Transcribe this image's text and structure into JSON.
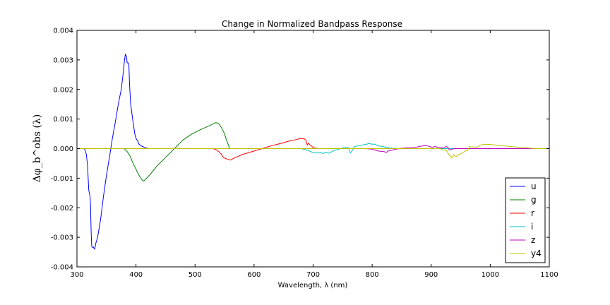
{
  "chart_data": {
    "type": "line",
    "title": "Change in Normalized Bandpass Response",
    "xlabel": "Wavelength, λ (nm)",
    "ylabel": "Δφ_b^obs (λ)",
    "xlim": [
      300,
      1100
    ],
    "ylim": [
      -0.004,
      0.004
    ],
    "x_ticks": [
      "300",
      "400",
      "500",
      "600",
      "700",
      "800",
      "900",
      "1000",
      "1100"
    ],
    "y_ticks": [
      "0.004",
      "0.003",
      "0.002",
      "0.001",
      "0.000",
      "-0.001",
      "-0.002",
      "-0.003",
      "-0.004"
    ],
    "legend_position": "lower right",
    "grid": false,
    "series": [
      {
        "name": "u",
        "color": "#0000ff",
        "points": [
          [
            300,
            0
          ],
          [
            310,
            0
          ],
          [
            313,
            -1e-05
          ],
          [
            316,
            -0.0002
          ],
          [
            318,
            -0.0006
          ],
          [
            320,
            -0.0014
          ],
          [
            322,
            -0.0016
          ],
          [
            323,
            -0.0019
          ],
          [
            324,
            -0.0028
          ],
          [
            325,
            -0.0033
          ],
          [
            327,
            -0.00335
          ],
          [
            328,
            -0.00333
          ],
          [
            329,
            -0.00338
          ],
          [
            330,
            -0.0034
          ],
          [
            332,
            -0.0032
          ],
          [
            335,
            -0.003
          ],
          [
            340,
            -0.0024
          ],
          [
            345,
            -0.0016
          ],
          [
            350,
            -0.0009
          ],
          [
            355,
            -0.0003
          ],
          [
            360,
            0.00035
          ],
          [
            365,
            0.0009
          ],
          [
            370,
            0.0015
          ],
          [
            375,
            0.002
          ],
          [
            378,
            0.0025
          ],
          [
            380,
            0.0029
          ],
          [
            382,
            0.0032
          ],
          [
            384,
            0.0031
          ],
          [
            385,
            0.0029
          ],
          [
            387,
            0.0029
          ],
          [
            388,
            0.0028
          ],
          [
            389,
            0.0022
          ],
          [
            391,
            0.0015
          ],
          [
            393,
            0.0012
          ],
          [
            395,
            0.0009
          ],
          [
            398,
            0.0005
          ],
          [
            400,
            0.00035
          ],
          [
            403,
            0.00025
          ],
          [
            405,
            0.00015
          ],
          [
            410,
            8e-05
          ],
          [
            415,
            4e-05
          ],
          [
            420,
            0
          ],
          [
            450,
            0
          ],
          [
            500,
            0
          ],
          [
            600,
            0
          ],
          [
            700,
            0
          ],
          [
            800,
            0
          ],
          [
            900,
            0
          ],
          [
            1000,
            0
          ],
          [
            1100,
            0
          ]
        ]
      },
      {
        "name": "g",
        "color": "#008000",
        "points": [
          [
            300,
            0
          ],
          [
            380,
            0
          ],
          [
            385,
            -0.0001
          ],
          [
            390,
            -0.00025
          ],
          [
            395,
            -0.0005
          ],
          [
            400,
            -0.0007
          ],
          [
            405,
            -0.0009
          ],
          [
            410,
            -0.00105
          ],
          [
            413,
            -0.0011
          ],
          [
            418,
            -0.001
          ],
          [
            425,
            -0.00085
          ],
          [
            435,
            -0.0006
          ],
          [
            450,
            -0.0003
          ],
          [
            465,
            0
          ],
          [
            480,
            0.0003
          ],
          [
            495,
            0.0005
          ],
          [
            510,
            0.00065
          ],
          [
            525,
            0.00078
          ],
          [
            535,
            0.00088
          ],
          [
            540,
            0.00085
          ],
          [
            545,
            0.0007
          ],
          [
            550,
            0.0005
          ],
          [
            553,
            0.0003
          ],
          [
            556,
            0.00015
          ],
          [
            558,
            3e-05
          ],
          [
            560,
            0
          ],
          [
            600,
            0
          ],
          [
            700,
            0
          ],
          [
            800,
            0
          ],
          [
            900,
            0
          ],
          [
            1000,
            0
          ],
          [
            1100,
            0
          ]
        ]
      },
      {
        "name": "r",
        "color": "#ff0000",
        "points": [
          [
            300,
            0
          ],
          [
            530,
            0
          ],
          [
            535,
            -3e-05
          ],
          [
            540,
            -0.0001
          ],
          [
            545,
            -0.0002
          ],
          [
            548,
            -0.0003
          ],
          [
            552,
            -0.00034
          ],
          [
            556,
            -0.00036
          ],
          [
            560,
            -0.00039
          ],
          [
            565,
            -0.00033
          ],
          [
            572,
            -0.00027
          ],
          [
            580,
            -0.0002
          ],
          [
            590,
            -0.00014
          ],
          [
            600,
            -8e-05
          ],
          [
            610,
            -2e-05
          ],
          [
            620,
            4e-05
          ],
          [
            630,
            0.0001
          ],
          [
            640,
            0.00015
          ],
          [
            650,
            0.0002
          ],
          [
            660,
            0.00026
          ],
          [
            670,
            0.0003
          ],
          [
            678,
            0.00034
          ],
          [
            685,
            0.00033
          ],
          [
            688,
            0.00028
          ],
          [
            690,
            0.00012
          ],
          [
            692,
            0.00018
          ],
          [
            694,
            0.00014
          ],
          [
            697,
            0.0001
          ],
          [
            700,
            3e-05
          ],
          [
            705,
            1e-05
          ],
          [
            710,
            0
          ],
          [
            800,
            0
          ],
          [
            900,
            0
          ],
          [
            1000,
            0
          ],
          [
            1100,
            0
          ]
        ]
      },
      {
        "name": "i",
        "color": "#00bfbf",
        "points": [
          [
            300,
            0
          ],
          [
            680,
            0
          ],
          [
            690,
            -5e-05
          ],
          [
            698,
            -0.00012
          ],
          [
            705,
            -0.00015
          ],
          [
            712,
            -0.00014
          ],
          [
            718,
            -0.00016
          ],
          [
            722,
            -0.00012
          ],
          [
            726,
            -0.00016
          ],
          [
            730,
            -0.00012
          ],
          [
            736,
            -6e-05
          ],
          [
            740,
            -4e-05
          ],
          [
            745,
            -1e-05
          ],
          [
            752,
            3e-05
          ],
          [
            758,
            5e-05
          ],
          [
            761,
            0
          ],
          [
            763,
            -0.00015
          ],
          [
            765,
            -9e-05
          ],
          [
            767,
            -5e-05
          ],
          [
            770,
            7e-05
          ],
          [
            778,
            0.0001
          ],
          [
            788,
            0.00014
          ],
          [
            795,
            0.00017
          ],
          [
            800,
            0.00015
          ],
          [
            805,
            0.00015
          ],
          [
            810,
            9e-05
          ],
          [
            815,
            8e-05
          ],
          [
            820,
            6e-05
          ],
          [
            830,
            2e-05
          ],
          [
            840,
            0
          ],
          [
            900,
            0
          ],
          [
            1000,
            0
          ],
          [
            1100,
            0
          ]
        ]
      },
      {
        "name": "z",
        "color": "#bf00bf",
        "points": [
          [
            300,
            0
          ],
          [
            790,
            0
          ],
          [
            800,
            -2e-05
          ],
          [
            810,
            -8e-05
          ],
          [
            820,
            -0.0001
          ],
          [
            824,
            -0.00013
          ],
          [
            827,
            -8e-05
          ],
          [
            832,
            -6e-05
          ],
          [
            838,
            -3e-05
          ],
          [
            845,
            0
          ],
          [
            855,
            2e-05
          ],
          [
            865,
            3e-05
          ],
          [
            875,
            5e-05
          ],
          [
            885,
            9e-05
          ],
          [
            892,
            0.0001
          ],
          [
            898,
            7e-05
          ],
          [
            903,
            3e-05
          ],
          [
            906,
            8e-05
          ],
          [
            910,
            5e-05
          ],
          [
            914,
            4e-05
          ],
          [
            920,
            2e-05
          ],
          [
            925,
            7e-05
          ],
          [
            928,
            5e-05
          ],
          [
            931,
            -5e-05
          ],
          [
            935,
            -2e-05
          ],
          [
            940,
            0
          ],
          [
            960,
            0
          ],
          [
            1000,
            0
          ],
          [
            1100,
            0
          ]
        ]
      },
      {
        "name": "y4",
        "color": "#bfbf00",
        "points": [
          [
            300,
            0
          ],
          [
            900,
            0
          ],
          [
            915,
            0
          ],
          [
            920,
            -5e-05
          ],
          [
            925,
            -4e-05
          ],
          [
            930,
            -0.0002
          ],
          [
            935,
            -0.00032
          ],
          [
            938,
            -0.0002
          ],
          [
            942,
            -0.00028
          ],
          [
            946,
            -0.0002
          ],
          [
            950,
            -0.00018
          ],
          [
            955,
            -0.00012
          ],
          [
            958,
            -8e-05
          ],
          [
            962,
            -6e-05
          ],
          [
            965,
            8e-05
          ],
          [
            968,
            5e-05
          ],
          [
            972,
            6e-05
          ],
          [
            976,
            4e-05
          ],
          [
            980,
            8e-05
          ],
          [
            985,
            0.00013
          ],
          [
            990,
            0.00015
          ],
          [
            1000,
            0.00014
          ],
          [
            1010,
            0.00012
          ],
          [
            1025,
            9e-05
          ],
          [
            1040,
            6e-05
          ],
          [
            1055,
            4e-05
          ],
          [
            1070,
            1e-05
          ],
          [
            1080,
            0
          ],
          [
            1100,
            0
          ]
        ]
      }
    ]
  }
}
